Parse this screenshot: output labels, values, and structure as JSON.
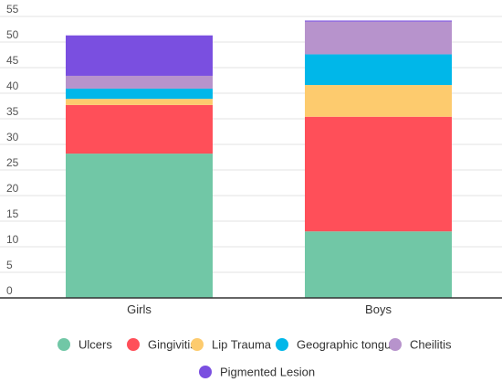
{
  "chart_data": {
    "type": "bar",
    "stacked": true,
    "categories": [
      "Girls",
      "Boys"
    ],
    "series": [
      {
        "name": "Ulcers",
        "color": "#71c7a6",
        "values": [
          28.2,
          13.0
        ]
      },
      {
        "name": "Gingivitis",
        "color": "#ff4f59",
        "values": [
          9.5,
          22.4
        ]
      },
      {
        "name": "Lip Trauma",
        "color": "#fdcb6e",
        "values": [
          1.2,
          6.2
        ]
      },
      {
        "name": "Geographic tongue",
        "color": "#00b7e9",
        "values": [
          2.0,
          6.0
        ]
      },
      {
        "name": "Cheilitis",
        "color": "#b793cc",
        "values": [
          2.5,
          6.4
        ]
      },
      {
        "name": "Pigmented Lesion",
        "color": "#7a4fe0",
        "values": [
          7.9,
          0.2
        ]
      }
    ],
    "yticks": [
      "0",
      "5",
      "10",
      "15",
      "20",
      "25",
      "30",
      "35",
      "40",
      "45",
      "50",
      "55"
    ],
    "ylim": [
      0,
      55
    ],
    "grid": true,
    "legend_position": "bottom",
    "title": "",
    "xlabel": "",
    "ylabel": ""
  }
}
